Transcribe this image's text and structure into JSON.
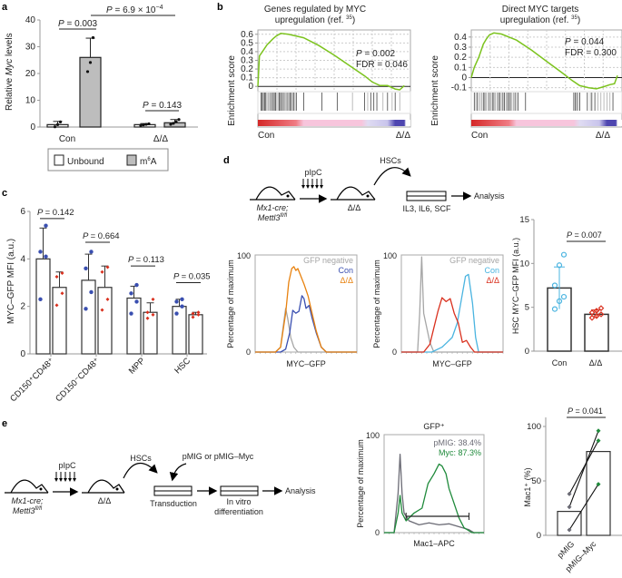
{
  "panels": {
    "a": {
      "letter": "a"
    },
    "b": {
      "letter": "b"
    },
    "c": {
      "letter": "c"
    },
    "d": {
      "letter": "d"
    },
    "e": {
      "letter": "e"
    }
  },
  "colors": {
    "con_blue": "#3a4fb0",
    "dd_orange": "#e8820f",
    "dd_red": "#d9301e",
    "con_cyan": "#4ab4e0",
    "gsea_green": "#7cc31e",
    "gfp_neg_gray": "#a6a6a6",
    "myc_green": "#1f8a3b",
    "pmig_gray": "#6b6b75",
    "m6a_fill": "#bdbdbd"
  },
  "chart_data": [
    {
      "id": "a",
      "type": "bar",
      "title": "",
      "xlabel": "",
      "ylabel": "Relative Myc levels",
      "ylim": [
        0,
        40
      ],
      "yticks": [
        0,
        10,
        20,
        30,
        40
      ],
      "categories": [
        "Con",
        "Δ/Δ"
      ],
      "series": [
        {
          "name": "Unbound",
          "values": [
            0.9,
            0.9
          ],
          "err": [
            1.2,
            0.4
          ],
          "points": [
            [
              0.1,
              0.9,
              1.9
            ],
            [
              0.6,
              0.8,
              1.0,
              1.2
            ]
          ]
        },
        {
          "name": "m6A",
          "values": [
            26,
            1.6
          ],
          "err": [
            7.2,
            1.2
          ],
          "points": [
            [
              20.7,
              24.1,
              33.4
            ],
            [
              1.0,
              1.4,
              2.0,
              2.8
            ]
          ]
        }
      ],
      "legend": [
        "Unbound",
        "m6A"
      ],
      "legend_placement": "bottom",
      "annotations": [
        "P = 0.003",
        "P = 6.9 × 10−4",
        "P = 0.143"
      ]
    },
    {
      "id": "b1",
      "type": "line",
      "title": "Genes regulated by MYC upregulation (ref. 35)",
      "ylabel": "Enrichment score",
      "ylim": [
        -0.05,
        0.65
      ],
      "yticks": [
        0,
        0.1,
        0.2,
        0.3,
        0.4,
        0.5,
        0.6
      ],
      "xlabels": [
        "Con",
        "Δ/Δ"
      ],
      "x": [
        0,
        0.01,
        0.03,
        0.06,
        0.1,
        0.12,
        0.15,
        0.2,
        0.3,
        0.4,
        0.5,
        0.6,
        0.7,
        0.75,
        0.8,
        0.85,
        0.9,
        0.93,
        0.96
      ],
      "y": [
        0,
        0.35,
        0.4,
        0.48,
        0.55,
        0.58,
        0.61,
        0.6,
        0.56,
        0.47,
        0.36,
        0.24,
        0.12,
        0.05,
        0.01,
        0.01,
        -0.03,
        -0.04,
        0.01
      ],
      "annotations": [
        "P = 0.002",
        "FDR = 0.046"
      ],
      "grid": true
    },
    {
      "id": "b2",
      "type": "line",
      "title": "Direct MYC targets upregulation (ref. 35)",
      "ylabel": "Enrichment score",
      "ylim": [
        -0.13,
        0.47
      ],
      "yticks": [
        -0.1,
        0,
        0.1,
        0.2,
        0.3,
        0.4
      ],
      "xlabels": [
        "Con",
        "Δ/Δ"
      ],
      "x": [
        0,
        0.02,
        0.05,
        0.08,
        0.1,
        0.12,
        0.15,
        0.2,
        0.3,
        0.4,
        0.5,
        0.6,
        0.67,
        0.72,
        0.78,
        0.83,
        0.88,
        0.92,
        0.95,
        0.97
      ],
      "y": [
        0,
        0.1,
        0.2,
        0.33,
        0.38,
        0.42,
        0.44,
        0.43,
        0.37,
        0.27,
        0.16,
        0.05,
        -0.03,
        -0.08,
        -0.1,
        -0.11,
        -0.09,
        -0.07,
        -0.06,
        0.02
      ],
      "annotations": [
        "P = 0.044",
        "FDR = 0.300"
      ],
      "grid": true
    },
    {
      "id": "c",
      "type": "bar",
      "ylabel": "MYC–GFP MFI (a.u.)",
      "ylim": [
        0,
        6
      ],
      "yticks": [
        0,
        2,
        4,
        6
      ],
      "categories": [
        "CD150⁺CD48⁺",
        "CD150⁻CD48⁺",
        "MPP",
        "HSC"
      ],
      "series": [
        {
          "name": "Con",
          "values": [
            4.0,
            3.1,
            2.35,
            2.0
          ],
          "err": [
            1.3,
            1.1,
            0.5,
            0.3
          ],
          "points": [
            [
              2.3,
              4.1,
              4.3,
              5.4
            ],
            [
              1.9,
              2.6,
              3.6,
              4.3
            ],
            [
              1.7,
              2.2,
              2.55,
              2.9
            ],
            [
              1.7,
              2.0,
              2.2,
              2.3
            ]
          ]
        },
        {
          "name": "Δ/Δ",
          "values": [
            2.8,
            2.8,
            1.75,
            1.65
          ],
          "err": [
            0.65,
            0.9,
            0.4,
            0.1
          ],
          "points": [
            [
              2.05,
              2.55,
              3.25,
              3.4
            ],
            [
              1.85,
              2.3,
              3.45,
              3.65
            ],
            [
              1.5,
              1.65,
              1.75,
              2.3
            ],
            [
              1.55,
              1.65,
              1.7,
              1.75
            ]
          ]
        }
      ],
      "annotations": [
        "P = 0.142",
        "P = 0.664",
        "P = 0.113",
        "P = 0.035"
      ]
    },
    {
      "id": "d1",
      "type": "line",
      "ylabel": "Percentage of maximum",
      "xlabel": "MYC–GFP",
      "ylim": [
        0,
        100
      ],
      "yticks": [
        0,
        100
      ],
      "legend": [
        "GFP negative",
        "Con",
        "Δ/Δ"
      ],
      "legend_placement": "top-right",
      "series": [
        {
          "name": "GFP negative",
          "x": [
            0.2,
            0.25,
            0.28,
            0.3,
            0.32,
            0.35,
            0.38,
            0.42
          ],
          "y": [
            0,
            5,
            30,
            45,
            35,
            15,
            5,
            0
          ]
        },
        {
          "name": "Con",
          "x": [
            0.25,
            0.3,
            0.34,
            0.37,
            0.4,
            0.43,
            0.46,
            0.48,
            0.5,
            0.53,
            0.56,
            0.6,
            0.65,
            0.7
          ],
          "y": [
            0,
            3,
            20,
            43,
            40,
            42,
            58,
            55,
            45,
            48,
            35,
            20,
            5,
            0
          ]
        },
        {
          "name": "Δ/Δ",
          "x": [
            0.2,
            0.25,
            0.3,
            0.33,
            0.36,
            0.38,
            0.4,
            0.42,
            0.45,
            0.48,
            0.52,
            0.56,
            0.6,
            0.65,
            0.7
          ],
          "y": [
            0,
            5,
            40,
            72,
            86,
            88,
            84,
            86,
            78,
            70,
            58,
            40,
            22,
            5,
            0
          ]
        }
      ]
    },
    {
      "id": "d2",
      "type": "line",
      "ylabel": "Percentage of maximum",
      "xlabel": "MYC–GFP",
      "ylim": [
        0,
        100
      ],
      "yticks": [
        0,
        100
      ],
      "legend": [
        "GFP negative",
        "Con",
        "Δ/Δ"
      ],
      "legend_placement": "top-right",
      "series": [
        {
          "name": "GFP negative",
          "x": [
            0.16,
            0.18,
            0.2,
            0.22,
            0.25,
            0.28,
            0.32
          ],
          "y": [
            0,
            40,
            98,
            40,
            25,
            10,
            0
          ]
        },
        {
          "name": "Con",
          "x": [
            0.3,
            0.4,
            0.45,
            0.5,
            0.55,
            0.6,
            0.63,
            0.66,
            0.7,
            0.73,
            0.76
          ],
          "y": [
            0,
            5,
            10,
            15,
            30,
            60,
            78,
            80,
            50,
            15,
            0
          ]
        },
        {
          "name": "Δ/Δ",
          "x": [
            0.22,
            0.28,
            0.32,
            0.36,
            0.4,
            0.44,
            0.48,
            0.52,
            0.56,
            0.6,
            0.64,
            0.68,
            0.72
          ],
          "y": [
            0,
            8,
            25,
            42,
            56,
            52,
            55,
            40,
            30,
            10,
            12,
            5,
            0
          ]
        }
      ]
    },
    {
      "id": "d3",
      "type": "bar",
      "ylabel": "HSC MYC–GFP MFI (a.u.)",
      "ylim": [
        0,
        15
      ],
      "yticks": [
        0,
        5,
        10,
        15
      ],
      "categories": [
        "Con",
        "Δ/Δ"
      ],
      "values": [
        7.2,
        4.2
      ],
      "err": [
        2.4,
        0.5
      ],
      "points": [
        [
          4.8,
          5.7,
          6.2,
          7.5,
          9.8,
          11.0
        ],
        [
          3.8,
          4.0,
          4.2,
          4.4,
          4.6,
          4.9
        ]
      ],
      "annotations": [
        "P = 0.007"
      ]
    },
    {
      "id": "e1",
      "type": "line",
      "title": "GFP⁺",
      "ylabel": "Percentage of maximum",
      "xlabel": "Mac1–APC",
      "ylim": [
        0,
        100
      ],
      "yticks": [
        0,
        100
      ],
      "legend": [
        "pMIG: 38.4%",
        "Myc: 87.3%"
      ],
      "legend_placement": "top-right",
      "series": [
        {
          "name": "pMIG",
          "x": [
            0.1,
            0.14,
            0.16,
            0.18,
            0.2,
            0.25,
            0.35,
            0.45,
            0.55,
            0.65,
            0.75,
            0.85,
            0.9
          ],
          "y": [
            0,
            40,
            80,
            40,
            20,
            12,
            8,
            10,
            8,
            9,
            6,
            3,
            0
          ]
        },
        {
          "name": "Myc",
          "x": [
            0.1,
            0.14,
            0.16,
            0.18,
            0.22,
            0.3,
            0.38,
            0.44,
            0.5,
            0.55,
            0.58,
            0.62,
            0.65,
            0.7,
            0.75,
            0.8,
            0.88
          ],
          "y": [
            0,
            20,
            38,
            20,
            12,
            20,
            25,
            50,
            60,
            70,
            68,
            60,
            45,
            30,
            15,
            5,
            0
          ]
        }
      ],
      "gate": {
        "from": 0.22,
        "to": 0.85
      }
    },
    {
      "id": "e2",
      "type": "bar",
      "ylabel": "Mac1⁺ (%)",
      "ylim": [
        0,
        110
      ],
      "yticks": [
        0,
        50,
        100
      ],
      "categories": [
        "pMIG",
        "pMIG–Myc"
      ],
      "values": [
        22,
        77
      ],
      "pairs": [
        [
          38,
          87
        ],
        [
          26,
          96
        ],
        [
          5,
          47
        ]
      ],
      "annotations": [
        "P = 0.041"
      ]
    }
  ],
  "labels": {
    "a_con": "Con",
    "a_dd": "Δ/Δ",
    "legend_unbound": "Unbound",
    "legend_m6a": "m",
    "legend_m6a_sup": "6",
    "legend_m6a_tail": "A",
    "a_ylabel_pre": "Relative ",
    "a_ylabel_it": "Myc",
    "a_ylabel_post": " levels",
    "p_a1": "= 0.003",
    "p_a2": "= 6.9 × 10",
    "p_a2_exp": "−4",
    "p_a3": "= 0.143",
    "P": "P",
    "b1_title1": "Genes regulated by MYC",
    "b1_title2": "upregulation (ref. ",
    "b1_ref": "35",
    "b2_title1": "Direct MYC targets",
    "b2_title2": "upregulation (ref. ",
    "b2_ref": "35",
    "paren": ")",
    "es": "Enrichment score",
    "b1_p": "= 0.002",
    "b1_fdr": "FDR = 0.046",
    "b2_p": "= 0.044",
    "b2_fdr": "FDR = 0.300",
    "con": "Con",
    "dd": "Δ/Δ",
    "c_ylabel": "MYC–GFP MFI (a.u.)",
    "c_p1": "= 0.142",
    "c_p2": "= 0.664",
    "c_p3": "= 0.113",
    "c_p4": "= 0.035",
    "c_x1": "CD150⁺CD48⁺",
    "c_x2": "CD150⁻CD48⁺",
    "c_x3": "MPP",
    "c_x4": "HSC",
    "pipc": "pIpC",
    "mx1": "Mx1-cre;",
    "mettl3": "Mettl3",
    "flfl": "fl/fl",
    "hscs": "HSCs",
    "cytokines": "IL3, IL6, SCF",
    "analysis": "Analysis",
    "pom": "Percentage of maximum",
    "myc_gfp": "MYC–GFP",
    "gfp_neg": "GFP negative",
    "hsc_ylabel": "HSC MYC–GFP MFI (a.u.)",
    "d_p": "= 0.007",
    "pmig_or": "pMIG or pMIG–Myc",
    "transduction": "Transduction",
    "invitro1": "In vitro",
    "invitro2": "differentiation",
    "gfp_plus": "GFP⁺",
    "pmig_pct": "pMIG: 38.4%",
    "myc_pct": "Myc: 87.3%",
    "mac1_apc": "Mac1–APC",
    "mac1_ylabel": "Mac1⁺ (%)",
    "e_p": "= 0.041",
    "pmig": "pMIG",
    "pmig_myc": "pMIG–Myc"
  }
}
